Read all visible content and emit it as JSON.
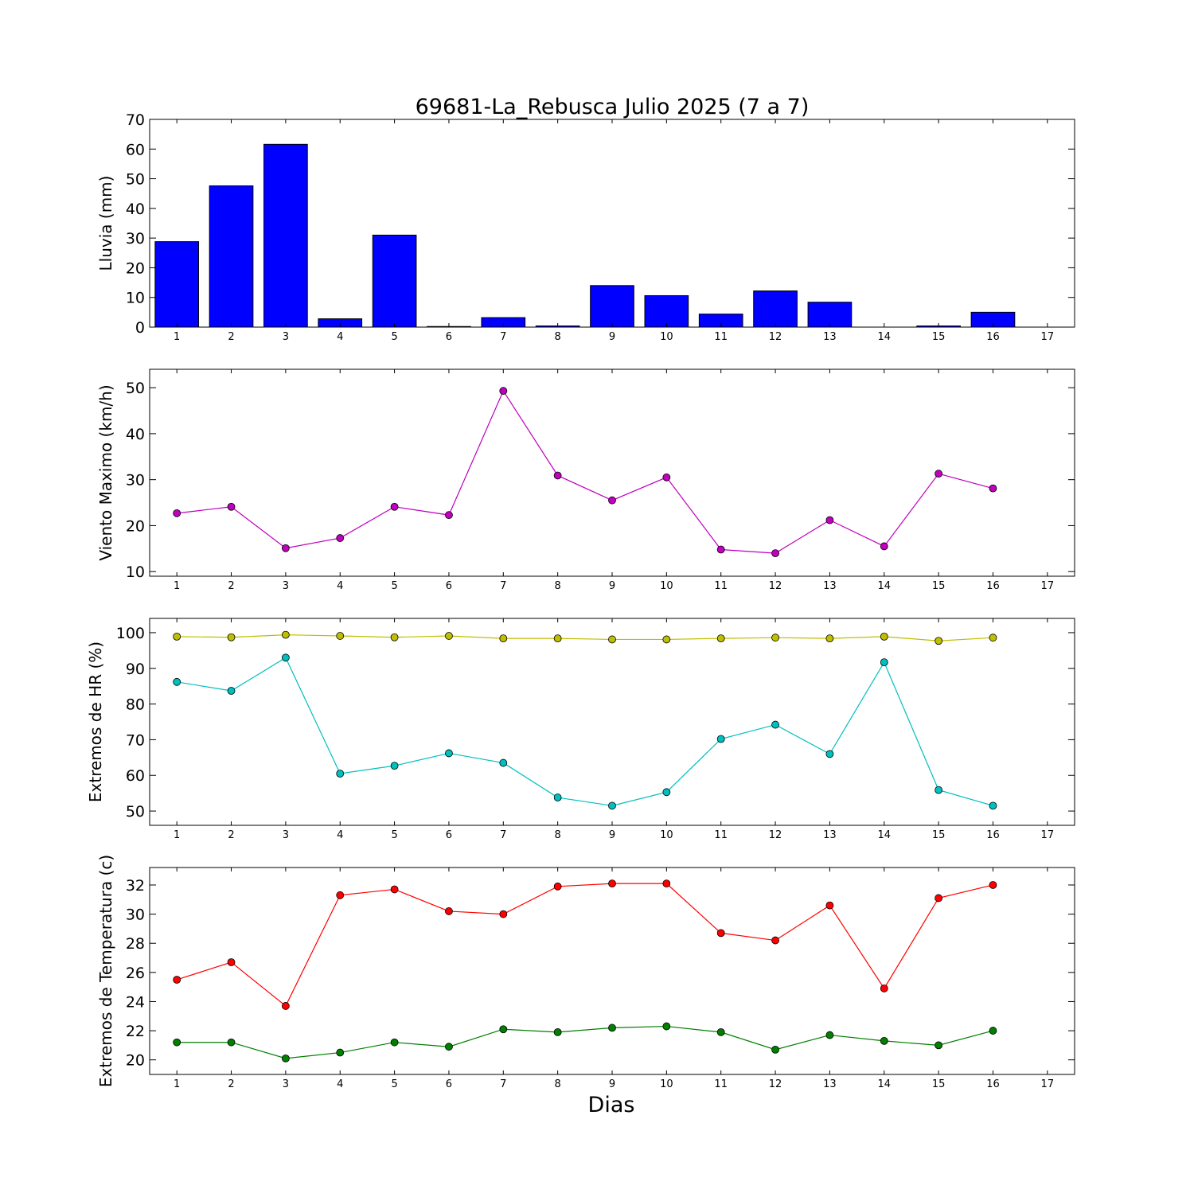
{
  "figure": {
    "title": "69681-La_Rebusca Julio 2025  (7 a 7)",
    "xlabel": "Dias"
  },
  "chart_data": [
    {
      "type": "bar",
      "ylabel": "Lluvia (mm)",
      "x_ticks": [
        1,
        2,
        3,
        4,
        5,
        6,
        7,
        8,
        9,
        10,
        11,
        12,
        13,
        14,
        15,
        16,
        17
      ],
      "xlim": [
        0.5,
        17.5
      ],
      "ylim": [
        0,
        70
      ],
      "y_ticks": [
        0,
        10,
        20,
        30,
        40,
        50,
        60,
        70
      ],
      "categories": [
        1,
        2,
        3,
        4,
        5,
        6,
        7,
        8,
        9,
        10,
        11,
        12,
        13,
        14,
        15,
        16
      ],
      "values": [
        28.8,
        47.6,
        61.6,
        2.8,
        31.0,
        0.2,
        3.2,
        0.4,
        14.0,
        10.6,
        4.4,
        12.2,
        8.4,
        0.0,
        0.4,
        5.0
      ],
      "bar_color": "#0000ff"
    },
    {
      "type": "line",
      "ylabel": "Viento Maximo (km/h)",
      "x_ticks": [
        1,
        2,
        3,
        4,
        5,
        6,
        7,
        8,
        9,
        10,
        11,
        12,
        13,
        14,
        15,
        16,
        17
      ],
      "xlim": [
        0.5,
        17.5
      ],
      "ylim": [
        9,
        54
      ],
      "y_ticks": [
        10,
        20,
        30,
        40,
        50
      ],
      "x": [
        1,
        2,
        3,
        4,
        5,
        6,
        7,
        8,
        9,
        10,
        11,
        12,
        13,
        14,
        15,
        16
      ],
      "series": [
        {
          "color": "#bf00bf",
          "values": [
            22.7,
            24.1,
            15.1,
            17.3,
            24.1,
            22.3,
            49.3,
            30.9,
            25.5,
            30.5,
            14.8,
            14.0,
            21.2,
            15.5,
            31.3,
            28.1
          ]
        }
      ]
    },
    {
      "type": "line",
      "ylabel": "Extremos de HR (%)",
      "x_ticks": [
        1,
        2,
        3,
        4,
        5,
        6,
        7,
        8,
        9,
        10,
        11,
        12,
        13,
        14,
        15,
        16,
        17
      ],
      "xlim": [
        0.5,
        17.5
      ],
      "ylim": [
        46,
        104
      ],
      "y_ticks": [
        50,
        60,
        70,
        80,
        90,
        100
      ],
      "x": [
        1,
        2,
        3,
        4,
        5,
        6,
        7,
        8,
        9,
        10,
        11,
        12,
        13,
        14,
        15,
        16
      ],
      "series": [
        {
          "color": "#bfbf00",
          "values": [
            98.9,
            98.7,
            99.4,
            99.1,
            98.7,
            99.1,
            98.4,
            98.4,
            98.1,
            98.1,
            98.4,
            98.6,
            98.4,
            98.9,
            97.7,
            98.6
          ]
        },
        {
          "color": "#00bfbf",
          "values": [
            86.2,
            83.7,
            93.0,
            60.5,
            62.7,
            66.2,
            63.5,
            53.8,
            51.5,
            55.3,
            70.2,
            74.2,
            66.0,
            91.7,
            55.9,
            51.5
          ]
        }
      ]
    },
    {
      "type": "line",
      "ylabel": "Extremos de Temperatura (c)",
      "x_ticks": [
        1,
        2,
        3,
        4,
        5,
        6,
        7,
        8,
        9,
        10,
        11,
        12,
        13,
        14,
        15,
        16,
        17
      ],
      "xlim": [
        0.5,
        17.5
      ],
      "ylim": [
        19,
        33.2
      ],
      "y_ticks": [
        20,
        22,
        24,
        26,
        28,
        30,
        32
      ],
      "x": [
        1,
        2,
        3,
        4,
        5,
        6,
        7,
        8,
        9,
        10,
        11,
        12,
        13,
        14,
        15,
        16
      ],
      "series": [
        {
          "color": "#ff0000",
          "values": [
            25.5,
            26.7,
            23.7,
            31.3,
            31.7,
            30.2,
            30.0,
            31.9,
            32.1,
            32.1,
            28.7,
            28.2,
            30.6,
            24.9,
            31.1,
            32.0
          ]
        },
        {
          "color": "#007f00",
          "values": [
            21.2,
            21.2,
            20.1,
            20.5,
            21.2,
            20.9,
            22.1,
            21.9,
            22.2,
            22.3,
            21.9,
            20.7,
            21.7,
            21.3,
            21.0,
            22.0
          ]
        }
      ]
    }
  ]
}
